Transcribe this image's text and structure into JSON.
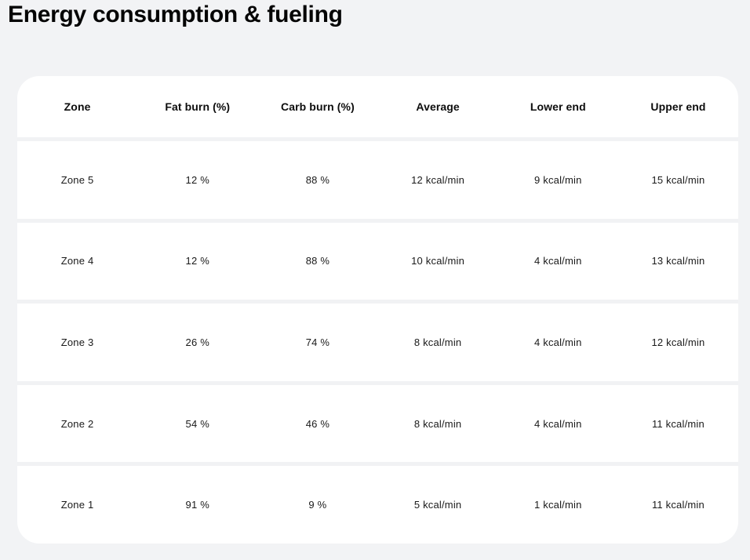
{
  "page": {
    "title": "Energy consumption & fueling",
    "background_color": "#f2f3f5",
    "card_color": "#ffffff",
    "divider_color": "#f1f2f4",
    "title_color": "#050505",
    "text_color": "#1a1a1a"
  },
  "table": {
    "columns": [
      "Zone",
      "Fat burn (%)",
      "Carb burn (%)",
      "Average",
      "Lower end",
      "Upper end"
    ],
    "rows": [
      {
        "zone": "Zone 5",
        "fat": "12 %",
        "carb": "88 %",
        "average": "12 kcal/min",
        "lower": "9 kcal/min",
        "upper": "15 kcal/min"
      },
      {
        "zone": "Zone 4",
        "fat": "12 %",
        "carb": "88 %",
        "average": "10 kcal/min",
        "lower": "4 kcal/min",
        "upper": "13 kcal/min"
      },
      {
        "zone": "Zone 3",
        "fat": "26 %",
        "carb": "74 %",
        "average": "8 kcal/min",
        "lower": "4 kcal/min",
        "upper": "12 kcal/min"
      },
      {
        "zone": "Zone 2",
        "fat": "54 %",
        "carb": "46 %",
        "average": "8 kcal/min",
        "lower": "4 kcal/min",
        "upper": "11 kcal/min"
      },
      {
        "zone": "Zone 1",
        "fat": "91 %",
        "carb": "9 %",
        "average": "5 kcal/min",
        "lower": "1 kcal/min",
        "upper": "11 kcal/min"
      }
    ]
  }
}
